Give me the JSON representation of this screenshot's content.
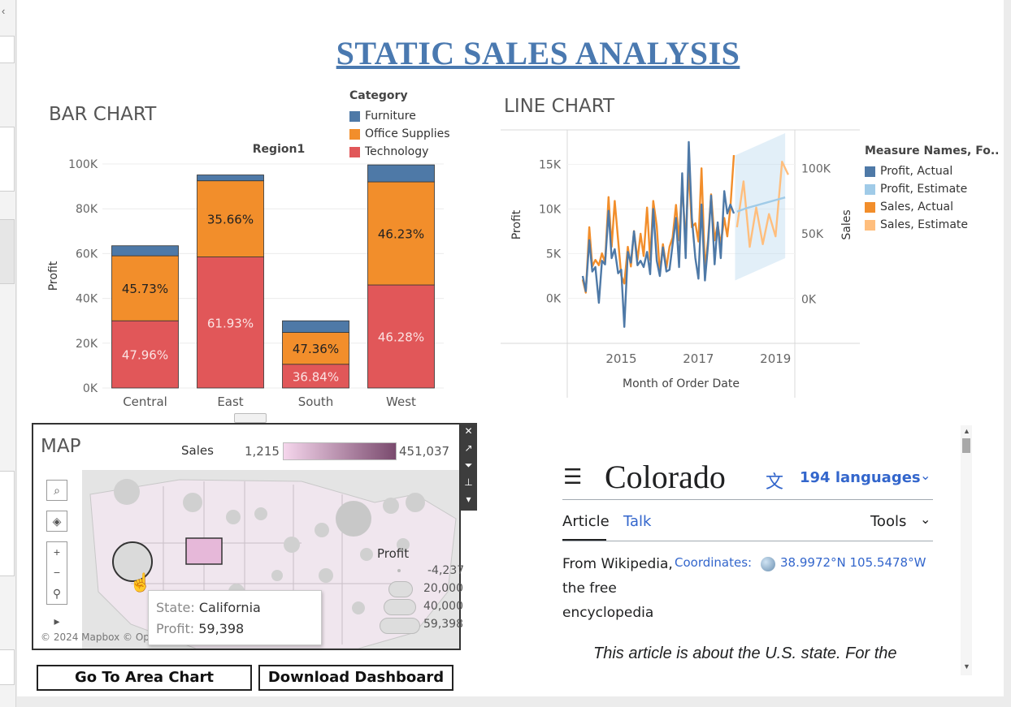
{
  "page": {
    "title": "STATIC SALES ANALYSIS"
  },
  "bar_chart": {
    "heading": "BAR CHART",
    "legend_title": "Category",
    "subtitle": "Region1"
  },
  "line_chart": {
    "heading": "LINE CHART",
    "legend_title": "Measure Names, Fo..",
    "xlabel": "Month of Order Date",
    "ylabel_left": "Profit",
    "ylabel_right": "Sales"
  },
  "map": {
    "heading": "MAP",
    "sales_label": "Sales",
    "sales_min": "1,215",
    "sales_max": "451,037",
    "profit_label": "Profit",
    "profit_values": [
      "-4,237",
      "20,000",
      "40,000",
      "59,398"
    ],
    "attribution": "© 2024 Mapbox © Op",
    "tooltip": {
      "state_key": "State:",
      "state_val": "California",
      "profit_key": "Profit:",
      "profit_val": "59,398"
    },
    "icons": [
      "close-icon",
      "popout-icon",
      "filter-icon",
      "pin-icon",
      "more-icon",
      "search-icon",
      "layers-icon",
      "zoom-in-icon",
      "zoom-out-icon",
      "pin-map-icon",
      "play-icon"
    ]
  },
  "buttons": {
    "area_chart": "Go To Area Chart",
    "download": "Download Dashboard"
  },
  "wiki": {
    "title": "Colorado",
    "languages": "194 languages",
    "tab_article": "Article",
    "tab_talk": "Talk",
    "tools": "Tools",
    "from": "From Wikipedia, the free encyclopedia",
    "coords_label": "Coordinates:",
    "coords": "38.9972°N 105.5478°W",
    "hatnote": "This article is about the U.S. state. For the"
  },
  "colors": {
    "furniture": "#4e79a7",
    "office": "#f28e2b",
    "technology": "#e15759",
    "profit_est": "#a0cbe8",
    "sales_est": "#ffbe7d",
    "title": "#4a79b0",
    "link": "#3366cc"
  },
  "chart_data": [
    {
      "type": "bar",
      "title": "Region1",
      "xlabel": "",
      "ylabel": "Profit",
      "ylim": [
        0,
        100000
      ],
      "yticks": [
        "0K",
        "20K",
        "40K",
        "60K",
        "80K",
        "100K"
      ],
      "categories": [
        "Central",
        "East",
        "South",
        "West"
      ],
      "stacked": true,
      "legend": "top-right",
      "series": [
        {
          "name": "Technology",
          "color": "#e15759",
          "values": [
            30000,
            58500,
            10600,
            46000
          ],
          "labels": [
            "47.96%",
            "61.93%",
            "36.84%",
            "46.28%"
          ]
        },
        {
          "name": "Office Supplies",
          "color": "#f28e2b",
          "values": [
            29000,
            34000,
            14200,
            46000
          ],
          "labels": [
            "45.73%",
            "35.66%",
            "47.36%",
            "46.23%"
          ]
        },
        {
          "name": "Furniture",
          "color": "#4e79a7",
          "values": [
            4500,
            2600,
            5200,
            7600
          ],
          "labels": [
            "",
            "",
            "",
            ""
          ]
        }
      ]
    },
    {
      "type": "line",
      "title": "",
      "xlabel": "Month of Order Date",
      "ylabel": "Profit",
      "y2label": "Sales",
      "xlim": [
        2014,
        2019.5
      ],
      "xticks": [
        "2015",
        "2017",
        "2019"
      ],
      "yticks": [
        "0K",
        "5K",
        "10K",
        "15K"
      ],
      "y2ticks": [
        "0K",
        "50K",
        "100K"
      ],
      "legend": "right",
      "series": [
        {
          "name": "Profit, Actual",
          "color": "#4e79a7",
          "axis": "left",
          "x": [
            2014.0,
            2014.08,
            2014.17,
            2014.25,
            2014.33,
            2014.42,
            2014.5,
            2014.58,
            2014.67,
            2014.75,
            2014.83,
            2014.92,
            2015.0,
            2015.08,
            2015.17,
            2015.25,
            2015.33,
            2015.42,
            2015.5,
            2015.58,
            2015.67,
            2015.75,
            2015.83,
            2015.92,
            2016.0,
            2016.08,
            2016.17,
            2016.25,
            2016.33,
            2016.42,
            2016.5,
            2016.58,
            2016.67,
            2016.75,
            2016.83,
            2016.92,
            2017.0,
            2017.08,
            2017.17,
            2017.25,
            2017.33,
            2017.42,
            2017.5,
            2017.58,
            2017.67,
            2017.75,
            2017.83,
            2017.92
          ],
          "y": [
            2500,
            800,
            6500,
            3000,
            3500,
            -500,
            4200,
            3800,
            9800,
            4500,
            5500,
            2800,
            3200,
            -3200,
            5200,
            4000,
            7500,
            3700,
            4200,
            3500,
            5200,
            2700,
            10000,
            4200,
            2500,
            5700,
            3000,
            3200,
            6000,
            9000,
            3500,
            14000,
            4500,
            17500,
            9000,
            4500,
            2200,
            10500,
            2000,
            6000,
            11500,
            3800,
            8500,
            4500,
            12000,
            9500,
            10500,
            9500
          ]
        },
        {
          "name": "Profit, Estimate",
          "color": "#a0cbe8",
          "axis": "left",
          "x": [
            2018.0,
            2018.25,
            2018.5,
            2018.75,
            2019.0,
            2019.25
          ],
          "y": [
            9700,
            10100,
            10400,
            10700,
            11000,
            11300
          ]
        },
        {
          "name": "Sales, Actual",
          "color": "#f28e2b",
          "axis": "right",
          "x": [
            2014.0,
            2014.08,
            2014.17,
            2014.25,
            2014.33,
            2014.42,
            2014.5,
            2014.58,
            2014.67,
            2014.75,
            2014.83,
            2014.92,
            2015.0,
            2015.08,
            2015.17,
            2015.25,
            2015.33,
            2015.42,
            2015.5,
            2015.58,
            2015.67,
            2015.75,
            2015.83,
            2015.92,
            2016.0,
            2016.08,
            2016.17,
            2016.25,
            2016.33,
            2016.42,
            2016.5,
            2016.58,
            2016.67,
            2016.75,
            2016.83,
            2016.92,
            2017.0,
            2017.08,
            2017.17,
            2017.25,
            2017.33,
            2017.42,
            2017.5,
            2017.58,
            2017.67,
            2017.75,
            2017.83,
            2017.92
          ],
          "y": [
            15000,
            5000,
            55000,
            25000,
            30000,
            26000,
            35000,
            28000,
            78000,
            40000,
            75000,
            45000,
            18000,
            12000,
            40000,
            25000,
            52000,
            30000,
            50000,
            33000,
            70000,
            30000,
            75000,
            56000,
            20000,
            42000,
            24000,
            40000,
            47000,
            72000,
            45000,
            88000,
            43000,
            100000,
            55000,
            58000,
            44000,
            100000,
            23000,
            45000,
            80000,
            45000,
            57000,
            42000,
            62000,
            48000,
            70000,
            110000
          ]
        },
        {
          "name": "Sales, Estimate",
          "color": "#ffbe7d",
          "axis": "right",
          "x": [
            2018.0,
            2018.17,
            2018.33,
            2018.5,
            2018.67,
            2018.83,
            2019.0,
            2019.17,
            2019.33
          ],
          "y": [
            55000,
            90000,
            40000,
            70000,
            42000,
            65000,
            48000,
            105000,
            95000
          ]
        }
      ]
    }
  ]
}
